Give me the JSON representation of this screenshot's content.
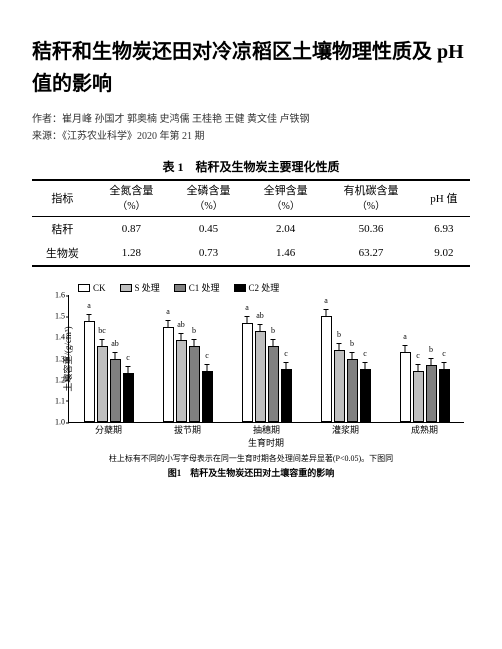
{
  "title": "秸秆和生物炭还田对冷凉稻区土壤物理性质及 pH 值的影响",
  "authors_label": "作者：",
  "authors": "崔月峰 孙国才 郭奥楠 史鸿儒 王桂艳 王健 黄文佳 卢铁钢",
  "source_label": "来源：",
  "source": "《江苏农业科学》2020 年第 21 期",
  "table": {
    "title": "表 1　秸秆及生物炭主要理化性质",
    "headers": [
      {
        "top": "指标",
        "sub": ""
      },
      {
        "top": "全氮含量",
        "sub": "（%）"
      },
      {
        "top": "全磷含量",
        "sub": "（%）"
      },
      {
        "top": "全钾含量",
        "sub": "（%）"
      },
      {
        "top": "有机碳含量",
        "sub": "（%）"
      },
      {
        "top": "pH 值",
        "sub": ""
      }
    ],
    "rows": [
      [
        "秸秆",
        "0.87",
        "0.45",
        "2.04",
        "50.36",
        "6.93"
      ],
      [
        "生物炭",
        "1.28",
        "0.73",
        "1.46",
        "63.27",
        "9.02"
      ]
    ]
  },
  "chart": {
    "type": "bar",
    "ylabel": "土壤容重/(g/cm³)",
    "ylim": [
      1.0,
      1.6
    ],
    "ytick_step": 0.1,
    "yticks": [
      "1.0",
      "1.1",
      "1.2",
      "1.3",
      "1.4",
      "1.5",
      "1.6"
    ],
    "xaxis_label": "生育时期",
    "legend": [
      {
        "label": "CK",
        "fill": "#ffffff"
      },
      {
        "label": "S 处理",
        "fill": "#bfbfbf"
      },
      {
        "label": "C1 处理",
        "fill": "#808080"
      },
      {
        "label": "C2 处理",
        "fill": "#000000"
      }
    ],
    "series_fill": [
      "#ffffff",
      "#bfbfbf",
      "#808080",
      "#000000"
    ],
    "categories": [
      "分蘖期",
      "拔节期",
      "抽穗期",
      "灌浆期",
      "成熟期"
    ],
    "values": [
      [
        1.48,
        1.36,
        1.3,
        1.23
      ],
      [
        1.45,
        1.39,
        1.36,
        1.24
      ],
      [
        1.47,
        1.43,
        1.36,
        1.25
      ],
      [
        1.5,
        1.34,
        1.3,
        1.25
      ],
      [
        1.33,
        1.24,
        1.27,
        1.25
      ]
    ],
    "sig_letters": [
      [
        "a",
        "bc",
        "ab",
        "c"
      ],
      [
        "a",
        "ab",
        "b",
        "c"
      ],
      [
        "a",
        "ab",
        "b",
        "c"
      ],
      [
        "a",
        "b",
        "b",
        "c"
      ],
      [
        "a",
        "c",
        "b",
        "c"
      ]
    ],
    "note": "柱上标有不同的小写字母表示在同一生育时期各处理间差异显著(P<0.05)。下图同",
    "caption": "图1　秸秆及生物炭还田对土壤容重的影响"
  }
}
